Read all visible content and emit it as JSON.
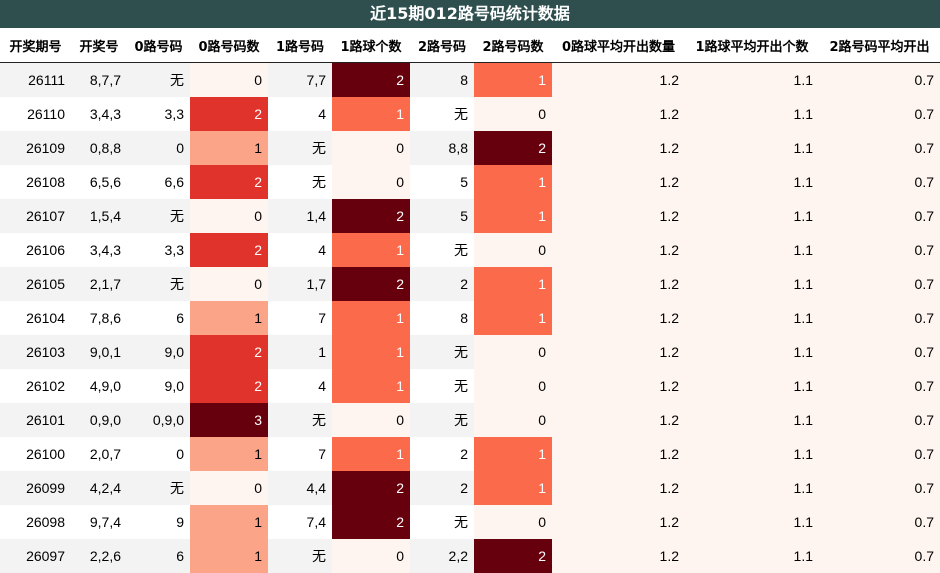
{
  "chart_data": {
    "type": "table",
    "title": "近15期012路号码统计数据",
    "columns": [
      "开奖期号",
      "开奖号",
      "0路号码",
      "0路号码数",
      "1路号码",
      "1路球个数",
      "2路号码",
      "2路号码数",
      "0路球平均开出数量",
      "1路球平均开出个数",
      "2路号码平均开出"
    ],
    "rows": [
      [
        "26111",
        "8,7,7",
        "无",
        0,
        "7,7",
        2,
        "8",
        1,
        "1.2",
        "1.1",
        "0.7"
      ],
      [
        "26110",
        "3,4,3",
        "3,3",
        2,
        "4",
        1,
        "无",
        0,
        "1.2",
        "1.1",
        "0.7"
      ],
      [
        "26109",
        "0,8,8",
        "0",
        1,
        "无",
        0,
        "8,8",
        2,
        "1.2",
        "1.1",
        "0.7"
      ],
      [
        "26108",
        "6,5,6",
        "6,6",
        2,
        "无",
        0,
        "5",
        1,
        "1.2",
        "1.1",
        "0.7"
      ],
      [
        "26107",
        "1,5,4",
        "无",
        0,
        "1,4",
        2,
        "5",
        1,
        "1.2",
        "1.1",
        "0.7"
      ],
      [
        "26106",
        "3,4,3",
        "3,3",
        2,
        "4",
        1,
        "无",
        0,
        "1.2",
        "1.1",
        "0.7"
      ],
      [
        "26105",
        "2,1,7",
        "无",
        0,
        "1,7",
        2,
        "2",
        1,
        "1.2",
        "1.1",
        "0.7"
      ],
      [
        "26104",
        "7,8,6",
        "6",
        1,
        "7",
        1,
        "8",
        1,
        "1.2",
        "1.1",
        "0.7"
      ],
      [
        "26103",
        "9,0,1",
        "9,0",
        2,
        "1",
        1,
        "无",
        0,
        "1.2",
        "1.1",
        "0.7"
      ],
      [
        "26102",
        "4,9,0",
        "9,0",
        2,
        "4",
        1,
        "无",
        0,
        "1.2",
        "1.1",
        "0.7"
      ],
      [
        "26101",
        "0,9,0",
        "0,9,0",
        3,
        "无",
        0,
        "无",
        0,
        "1.2",
        "1.1",
        "0.7"
      ],
      [
        "26100",
        "2,0,7",
        "0",
        1,
        "7",
        1,
        "2",
        1,
        "1.2",
        "1.1",
        "0.7"
      ],
      [
        "26099",
        "4,2,4",
        "无",
        0,
        "4,4",
        2,
        "2",
        1,
        "1.2",
        "1.1",
        "0.7"
      ],
      [
        "26098",
        "9,7,4",
        "9",
        1,
        "7,4",
        2,
        "无",
        0,
        "1.2",
        "1.1",
        "0.7"
      ],
      [
        "26097",
        "2,2,6",
        "6",
        1,
        "无",
        0,
        "2,2",
        2,
        "1.2",
        "1.1",
        "0.7"
      ]
    ]
  }
}
